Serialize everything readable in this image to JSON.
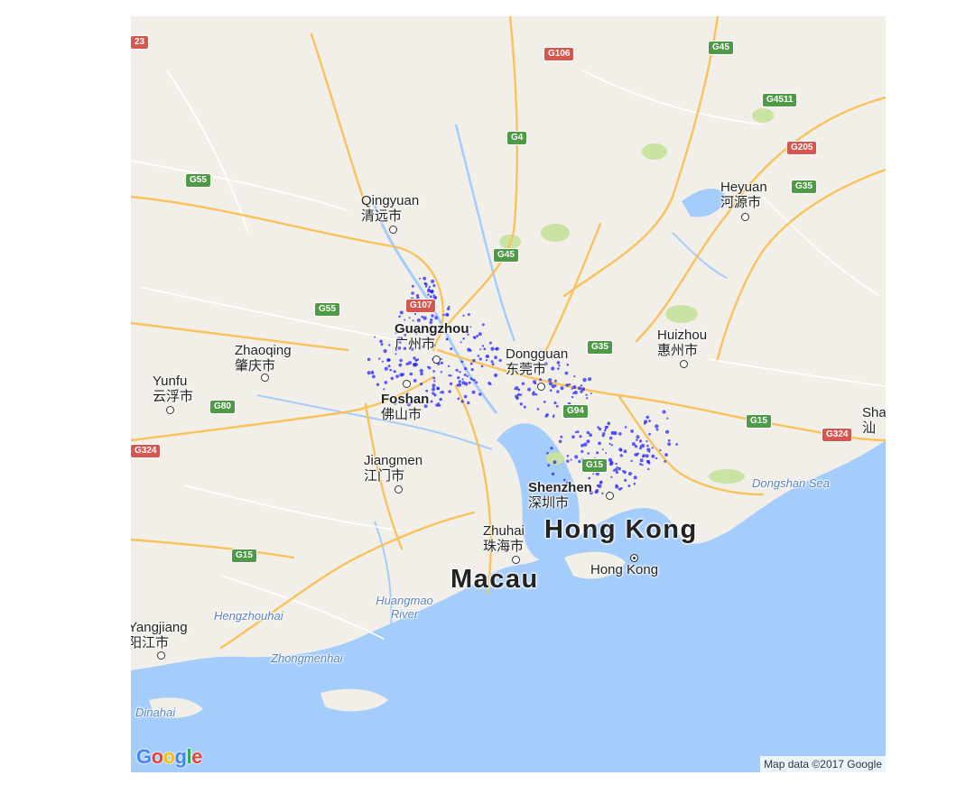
{
  "map": {
    "cities": [
      {
        "en": "Qingyuan",
        "zh": "清远市"
      },
      {
        "en": "Guangzhou",
        "zh": "广州市"
      },
      {
        "en": "Dongguan",
        "zh": "东莞市"
      },
      {
        "en": "Huizhou",
        "zh": "惠州市"
      },
      {
        "en": "Heyuan",
        "zh": "河源市"
      },
      {
        "en": "Zhaoqing",
        "zh": "肇庆市"
      },
      {
        "en": "Yunfu",
        "zh": "云浮市"
      },
      {
        "en": "Foshan",
        "zh": "佛山市"
      },
      {
        "en": "Jiangmen",
        "zh": "江门市"
      },
      {
        "en": "Shenzhen",
        "zh": "深圳市"
      },
      {
        "en": "Zhuhai",
        "zh": "珠海市"
      },
      {
        "en": "Yangjiang",
        "zh": "阳江市"
      },
      {
        "en": "Sha",
        "zh": "汕"
      }
    ],
    "major_labels": {
      "hong_kong_region": "Hong Kong",
      "macau": "Macau",
      "hong_kong_city": "Hong Kong"
    },
    "water_labels": [
      "Dongshan Sea",
      "Huangmao River",
      "Hengzhouhai",
      "Zhongmenhai",
      "Dinahai"
    ],
    "highway_shields": [
      {
        "code": "23",
        "color": "red"
      },
      {
        "code": "G106",
        "color": "red"
      },
      {
        "code": "G45",
        "color": "green"
      },
      {
        "code": "G4511",
        "color": "green"
      },
      {
        "code": "G205",
        "color": "red"
      },
      {
        "code": "G35",
        "color": "green"
      },
      {
        "code": "G4",
        "color": "green"
      },
      {
        "code": "G55",
        "color": "green"
      },
      {
        "code": "G45",
        "color": "green"
      },
      {
        "code": "G55",
        "color": "green"
      },
      {
        "code": "G107",
        "color": "red"
      },
      {
        "code": "G35",
        "color": "green"
      },
      {
        "code": "G94",
        "color": "green"
      },
      {
        "code": "G80",
        "color": "green"
      },
      {
        "code": "G15",
        "color": "green"
      },
      {
        "code": "G324",
        "color": "red"
      },
      {
        "code": "G324",
        "color": "red"
      },
      {
        "code": "G15",
        "color": "green"
      },
      {
        "code": "G15",
        "color": "green"
      }
    ],
    "overlay_point_color": "#1a1aff",
    "colors": {
      "land": "#f2efe9",
      "water": "#a5cdfc",
      "highway": "#f8c25c",
      "road": "#ffffff",
      "park": "#c9e4a2"
    }
  },
  "google_logo": [
    "G",
    "o",
    "o",
    "g",
    "l",
    "e"
  ],
  "attribution": "Map data ©2017 Google"
}
